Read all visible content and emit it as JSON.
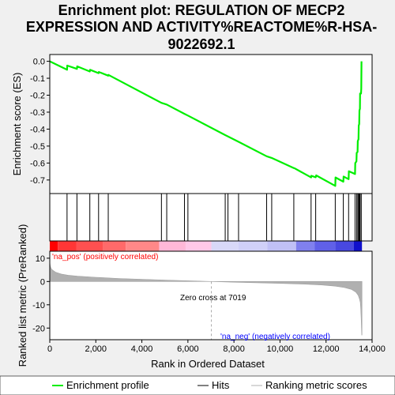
{
  "title_lines": [
    "Enrichment plot: REGULATION OF MECP2",
    "EXPRESSION AND ACTIVITY%REACTOME%R-HSA-",
    "9022692.1"
  ],
  "colors": {
    "es_line": "#00ee00",
    "hits": "#000000",
    "metric_fill": "#b0b0b0",
    "pos_label": "#ff0000",
    "neg_label": "#0000ff",
    "zero_cross": "#aaaaaa"
  },
  "chart_data": {
    "type": "line",
    "x_axis": {
      "label": "Rank in Ordered Dataset",
      "range": [
        0,
        14000
      ],
      "ticks": [
        0,
        2000,
        4000,
        6000,
        8000,
        10000,
        12000,
        14000
      ],
      "tick_labels": [
        "0",
        "2,000",
        "4,000",
        "6,000",
        "8,000",
        "10,000",
        "12,000",
        "14,000"
      ]
    },
    "es_panel": {
      "ylabel": "Enrichment score (ES)",
      "ylim": [
        -0.78,
        0.04
      ],
      "ticks": [
        0.0,
        -0.1,
        -0.2,
        -0.3,
        -0.4,
        -0.5,
        -0.6,
        -0.7
      ],
      "tick_labels": [
        "0.0",
        "-0.1",
        "-0.2",
        "-0.3",
        "-0.4",
        "-0.5",
        "-0.6",
        "-0.7"
      ],
      "series_name": "Enrichment profile",
      "points": [
        [
          0,
          0.0
        ],
        [
          750,
          -0.05
        ],
        [
          760,
          -0.025
        ],
        [
          1180,
          -0.045
        ],
        [
          1190,
          -0.03
        ],
        [
          1740,
          -0.06
        ],
        [
          1750,
          -0.05
        ],
        [
          2120,
          -0.07
        ],
        [
          2130,
          -0.063
        ],
        [
          2540,
          -0.085
        ],
        [
          2550,
          -0.08
        ],
        [
          4850,
          -0.245
        ],
        [
          5080,
          -0.255
        ],
        [
          5850,
          -0.31
        ],
        [
          6000,
          -0.32
        ],
        [
          7620,
          -0.435
        ],
        [
          7740,
          -0.443
        ],
        [
          8200,
          -0.475
        ],
        [
          9420,
          -0.56
        ],
        [
          9640,
          -0.57
        ],
        [
          10600,
          -0.63
        ],
        [
          10620,
          -0.63
        ],
        [
          11350,
          -0.685
        ],
        [
          11360,
          -0.675
        ],
        [
          11550,
          -0.684
        ],
        [
          11570,
          -0.673
        ],
        [
          12400,
          -0.735
        ],
        [
          12410,
          -0.685
        ],
        [
          12750,
          -0.71
        ],
        [
          12760,
          -0.68
        ],
        [
          12980,
          -0.695
        ],
        [
          12990,
          -0.648
        ],
        [
          13260,
          -0.665
        ],
        [
          13270,
          -0.6
        ],
        [
          13320,
          -0.59
        ],
        [
          13330,
          -0.54
        ],
        [
          13370,
          -0.535
        ],
        [
          13380,
          -0.47
        ],
        [
          13410,
          -0.46
        ],
        [
          13420,
          -0.38
        ],
        [
          13440,
          -0.37
        ],
        [
          13450,
          -0.29
        ],
        [
          13470,
          -0.28
        ],
        [
          13480,
          -0.19
        ],
        [
          13520,
          -0.19
        ],
        [
          13530,
          -0.16
        ],
        [
          13540,
          0.0
        ]
      ]
    },
    "hits": [
      750,
      1180,
      1740,
      2120,
      2540,
      4850,
      5080,
      5850,
      6000,
      7620,
      7740,
      8200,
      9420,
      9640,
      10600,
      11350,
      11550,
      12400,
      12750,
      12980,
      13260,
      13330,
      13380,
      13420,
      13450,
      13480,
      13530
    ],
    "hits_name": "Hits",
    "color_bar": {
      "segments": [
        {
          "from": 0,
          "to": 350,
          "color": "#ff0000"
        },
        {
          "from": 350,
          "to": 1150,
          "color": "#ff3636"
        },
        {
          "from": 1150,
          "to": 2300,
          "color": "#ff5050"
        },
        {
          "from": 2300,
          "to": 3300,
          "color": "#ff6a6a"
        },
        {
          "from": 3300,
          "to": 4750,
          "color": "#ff8888"
        },
        {
          "from": 4750,
          "to": 5900,
          "color": "#ffb8d8"
        },
        {
          "from": 5900,
          "to": 7019,
          "color": "#ffc8e8"
        },
        {
          "from": 7019,
          "to": 8200,
          "color": "#d8d8f8"
        },
        {
          "from": 8200,
          "to": 9450,
          "color": "#d0d0f8"
        },
        {
          "from": 9450,
          "to": 10700,
          "color": "#c0c0f6"
        },
        {
          "from": 10700,
          "to": 11500,
          "color": "#8080ee"
        },
        {
          "from": 11500,
          "to": 12400,
          "color": "#6060e8"
        },
        {
          "from": 12400,
          "to": 13200,
          "color": "#4848e0"
        },
        {
          "from": 13200,
          "to": 13560,
          "color": "#1010cc"
        }
      ]
    },
    "metric_panel": {
      "ylabel": "Ranked list metric (PreRanked)",
      "ylim": [
        -25,
        13
      ],
      "ticks": [
        10,
        0,
        -10,
        -20
      ],
      "tick_labels": [
        "10",
        "0",
        "-10",
        "-20"
      ],
      "series_name": "Ranking metric scores",
      "profile": [
        [
          0,
          8.5
        ],
        [
          20,
          6.8
        ],
        [
          60,
          5.6
        ],
        [
          120,
          4.9
        ],
        [
          250,
          4.0
        ],
        [
          500,
          3.2
        ],
        [
          800,
          2.7
        ],
        [
          1200,
          2.3
        ],
        [
          2000,
          1.8
        ],
        [
          3000,
          1.3
        ],
        [
          4000,
          0.95
        ],
        [
          5000,
          0.6
        ],
        [
          6000,
          0.3
        ],
        [
          7019,
          0.0
        ],
        [
          8000,
          -0.3
        ],
        [
          9000,
          -0.55
        ],
        [
          10000,
          -0.8
        ],
        [
          11000,
          -1.1
        ],
        [
          11800,
          -1.5
        ],
        [
          12400,
          -2.0
        ],
        [
          12800,
          -2.6
        ],
        [
          13100,
          -3.4
        ],
        [
          13300,
          -4.6
        ],
        [
          13400,
          -6.0
        ],
        [
          13450,
          -7.5
        ],
        [
          13490,
          -9.0
        ],
        [
          13510,
          -12.0
        ],
        [
          13530,
          -17.0
        ],
        [
          13550,
          -23.0
        ],
        [
          13560,
          -23.0
        ]
      ],
      "zero_cross_rank": 7019,
      "zero_cross_label": "Zero cross at 7019",
      "pos_label": "'na_pos' (positively correlated)",
      "neg_label": "'na_neg' (negatively correlated)"
    },
    "legend": {
      "placement": "bottom",
      "entries": [
        "Enrichment profile",
        "Hits",
        "Ranking metric scores"
      ]
    }
  }
}
